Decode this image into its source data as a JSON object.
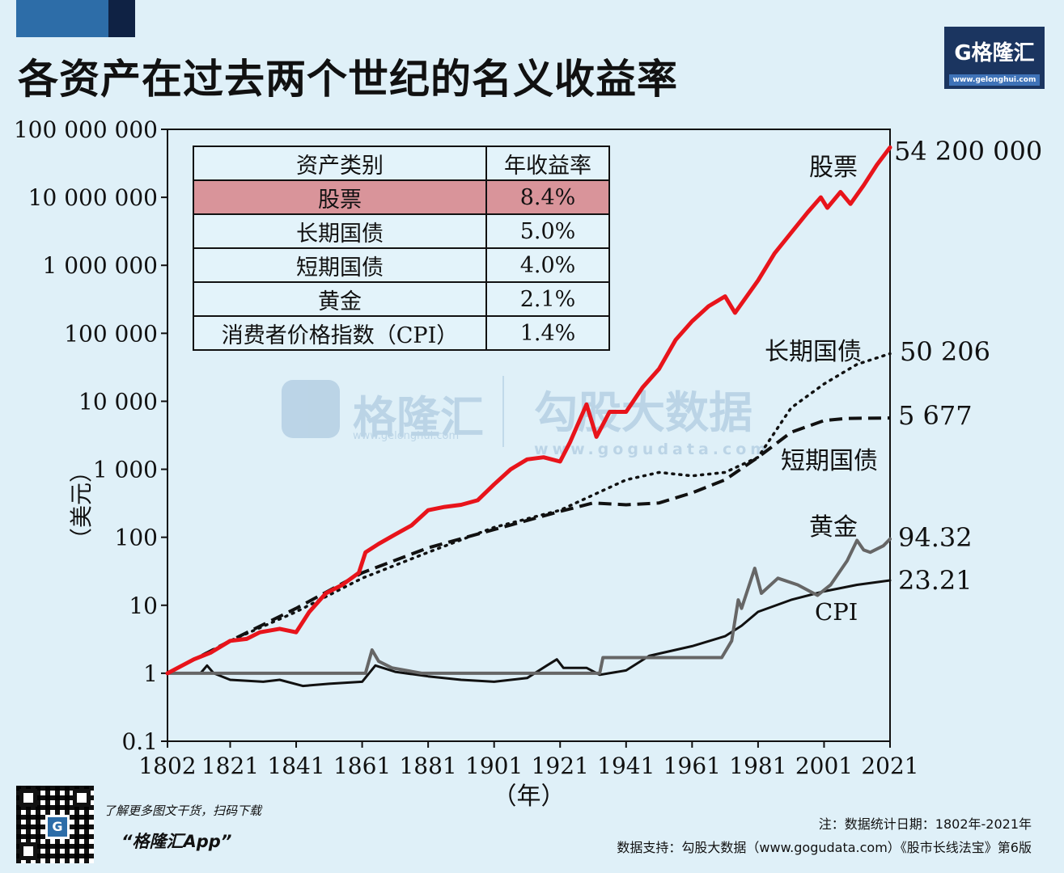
{
  "header": {
    "title": "各资产在过去两个世纪的名义收益率",
    "logo_text": "G格隆汇",
    "logo_url": "www.gelonghui.com"
  },
  "colors": {
    "stocks": "#e8141b",
    "highlight_row": "#d9949a",
    "background": "#dff0f8",
    "accent": "#2d6da8"
  },
  "table": {
    "headers": [
      "资产类别",
      "年收益率"
    ],
    "rows": [
      {
        "asset": "股票",
        "rate": "8.4%",
        "highlight": true
      },
      {
        "asset": "长期国债",
        "rate": "5.0%",
        "highlight": false
      },
      {
        "asset": "短期国债",
        "rate": "4.0%",
        "highlight": false
      },
      {
        "asset": "黄金",
        "rate": "2.1%",
        "highlight": false
      },
      {
        "asset": "消费者价格指数（CPI）",
        "rate": "1.4%",
        "highlight": false
      }
    ]
  },
  "watermark": {
    "brand1": "格隆汇",
    "brand1_url": "www.gelonghui.com",
    "brand2": "勾股大数据",
    "brand2_url": "www.gogudata.com"
  },
  "chart_data": {
    "type": "line",
    "title": "",
    "xlabel": "（年）",
    "ylabel": "（美元）",
    "yscale": "log",
    "xlim": [
      1802,
      2021
    ],
    "ylim": [
      0.1,
      100000000
    ],
    "xticks": [
      "1802",
      "1821",
      "1841",
      "1861",
      "1881",
      "1901",
      "1921",
      "1941",
      "1961",
      "1981",
      "2001",
      "2021"
    ],
    "yticks": [
      {
        "value": 100000000,
        "label": "100 000 000"
      },
      {
        "value": 10000000,
        "label": "10 000 000"
      },
      {
        "value": 1000000,
        "label": "1 000 000"
      },
      {
        "value": 100000,
        "label": "100 000"
      },
      {
        "value": 10000,
        "label": "10 000"
      },
      {
        "value": 1000,
        "label": "1 000"
      },
      {
        "value": 100,
        "label": "100"
      },
      {
        "value": 10,
        "label": "10"
      },
      {
        "value": 1,
        "label": "1"
      },
      {
        "value": 0.1,
        "label": "0.1"
      }
    ],
    "series": [
      {
        "name": "股票",
        "style": "solid",
        "color": "#e8141b",
        "end_label": "54 200 000",
        "points": [
          [
            1802,
            1
          ],
          [
            1810,
            1.6
          ],
          [
            1815,
            2
          ],
          [
            1821,
            3
          ],
          [
            1826,
            3.2
          ],
          [
            1830,
            4
          ],
          [
            1836,
            4.5
          ],
          [
            1841,
            4
          ],
          [
            1845,
            8
          ],
          [
            1850,
            15
          ],
          [
            1855,
            20
          ],
          [
            1860,
            30
          ],
          [
            1862,
            60
          ],
          [
            1866,
            80
          ],
          [
            1871,
            110
          ],
          [
            1876,
            150
          ],
          [
            1881,
            250
          ],
          [
            1886,
            280
          ],
          [
            1891,
            300
          ],
          [
            1896,
            350
          ],
          [
            1901,
            600
          ],
          [
            1906,
            1000
          ],
          [
            1911,
            1400
          ],
          [
            1916,
            1500
          ],
          [
            1921,
            1300
          ],
          [
            1924,
            2500
          ],
          [
            1929,
            9000
          ],
          [
            1932,
            3000
          ],
          [
            1936,
            7000
          ],
          [
            1941,
            7000
          ],
          [
            1946,
            16000
          ],
          [
            1951,
            30000
          ],
          [
            1956,
            80000
          ],
          [
            1961,
            150000
          ],
          [
            1966,
            250000
          ],
          [
            1971,
            350000
          ],
          [
            1974,
            200000
          ],
          [
            1981,
            600000
          ],
          [
            1986,
            1500000
          ],
          [
            1991,
            3000000
          ],
          [
            1996,
            6000000
          ],
          [
            2000,
            10000000
          ],
          [
            2002,
            7000000
          ],
          [
            2006,
            12000000
          ],
          [
            2009,
            8000000
          ],
          [
            2013,
            15000000
          ],
          [
            2017,
            30000000
          ],
          [
            2021,
            54200000
          ]
        ]
      },
      {
        "name": "长期国债",
        "style": "dotted",
        "color": "#111111",
        "end_label": "50 206",
        "points": [
          [
            1802,
            1
          ],
          [
            1821,
            3
          ],
          [
            1841,
            8
          ],
          [
            1861,
            25
          ],
          [
            1881,
            60
          ],
          [
            1901,
            140
          ],
          [
            1921,
            250
          ],
          [
            1941,
            700
          ],
          [
            1951,
            900
          ],
          [
            1961,
            800
          ],
          [
            1971,
            900
          ],
          [
            1981,
            1500
          ],
          [
            1991,
            8000
          ],
          [
            2001,
            18000
          ],
          [
            2011,
            35000
          ],
          [
            2021,
            50206
          ]
        ]
      },
      {
        "name": "短期国债",
        "style": "dashed",
        "color": "#111111",
        "end_label": "5 677",
        "points": [
          [
            1802,
            1
          ],
          [
            1821,
            3
          ],
          [
            1841,
            9
          ],
          [
            1861,
            30
          ],
          [
            1881,
            70
          ],
          [
            1901,
            130
          ],
          [
            1921,
            240
          ],
          [
            1931,
            320
          ],
          [
            1941,
            300
          ],
          [
            1951,
            320
          ],
          [
            1961,
            450
          ],
          [
            1971,
            700
          ],
          [
            1981,
            1500
          ],
          [
            1991,
            3500
          ],
          [
            2001,
            5200
          ],
          [
            2008,
            5600
          ],
          [
            2021,
            5677
          ]
        ]
      },
      {
        "name": "黄金",
        "style": "solid",
        "color": "#666666",
        "end_label": "94.32",
        "points": [
          [
            1802,
            1
          ],
          [
            1834,
            1
          ],
          [
            1862,
            1
          ],
          [
            1864,
            2.2
          ],
          [
            1866,
            1.5
          ],
          [
            1870,
            1.2
          ],
          [
            1879,
            1
          ],
          [
            1933,
            1
          ],
          [
            1934,
            1.7
          ],
          [
            1970,
            1.7
          ],
          [
            1973,
            3
          ],
          [
            1975,
            12
          ],
          [
            1976,
            9
          ],
          [
            1980,
            35
          ],
          [
            1982,
            15
          ],
          [
            1987,
            25
          ],
          [
            1993,
            20
          ],
          [
            1999,
            14
          ],
          [
            2003,
            20
          ],
          [
            2008,
            45
          ],
          [
            2011,
            90
          ],
          [
            2013,
            65
          ],
          [
            2015,
            60
          ],
          [
            2019,
            75
          ],
          [
            2021,
            94.32
          ]
        ]
      },
      {
        "name": "CPI",
        "style": "solid",
        "color": "#111111",
        "end_label": "23.21",
        "points": [
          [
            1802,
            1
          ],
          [
            1806,
            1
          ],
          [
            1812,
            1
          ],
          [
            1814,
            1.3
          ],
          [
            1816,
            1
          ],
          [
            1821,
            0.8
          ],
          [
            1831,
            0.75
          ],
          [
            1836,
            0.8
          ],
          [
            1843,
            0.65
          ],
          [
            1851,
            0.7
          ],
          [
            1861,
            0.75
          ],
          [
            1865,
            1.3
          ],
          [
            1871,
            1.05
          ],
          [
            1881,
            0.9
          ],
          [
            1891,
            0.8
          ],
          [
            1901,
            0.75
          ],
          [
            1911,
            0.85
          ],
          [
            1917,
            1.3
          ],
          [
            1920,
            1.6
          ],
          [
            1922,
            1.2
          ],
          [
            1929,
            1.2
          ],
          [
            1933,
            0.95
          ],
          [
            1941,
            1.1
          ],
          [
            1948,
            1.8
          ],
          [
            1961,
            2.5
          ],
          [
            1971,
            3.5
          ],
          [
            1976,
            5
          ],
          [
            1981,
            8
          ],
          [
            1991,
            12
          ],
          [
            2001,
            16
          ],
          [
            2011,
            20
          ],
          [
            2021,
            23.21
          ]
        ]
      }
    ],
    "annotations": [
      "股票",
      "长期国债",
      "短期国债",
      "黄金",
      "CPI"
    ]
  },
  "footer": {
    "promo_line": "了解更多图文干货，扫码下载",
    "promo_app": "“格隆汇App”",
    "note_date": "注：数据统计日期：1802年-2021年",
    "note_source": "数据支持：勾股大数据（www.gogudata.com）《股市长线法宝》第6版"
  }
}
